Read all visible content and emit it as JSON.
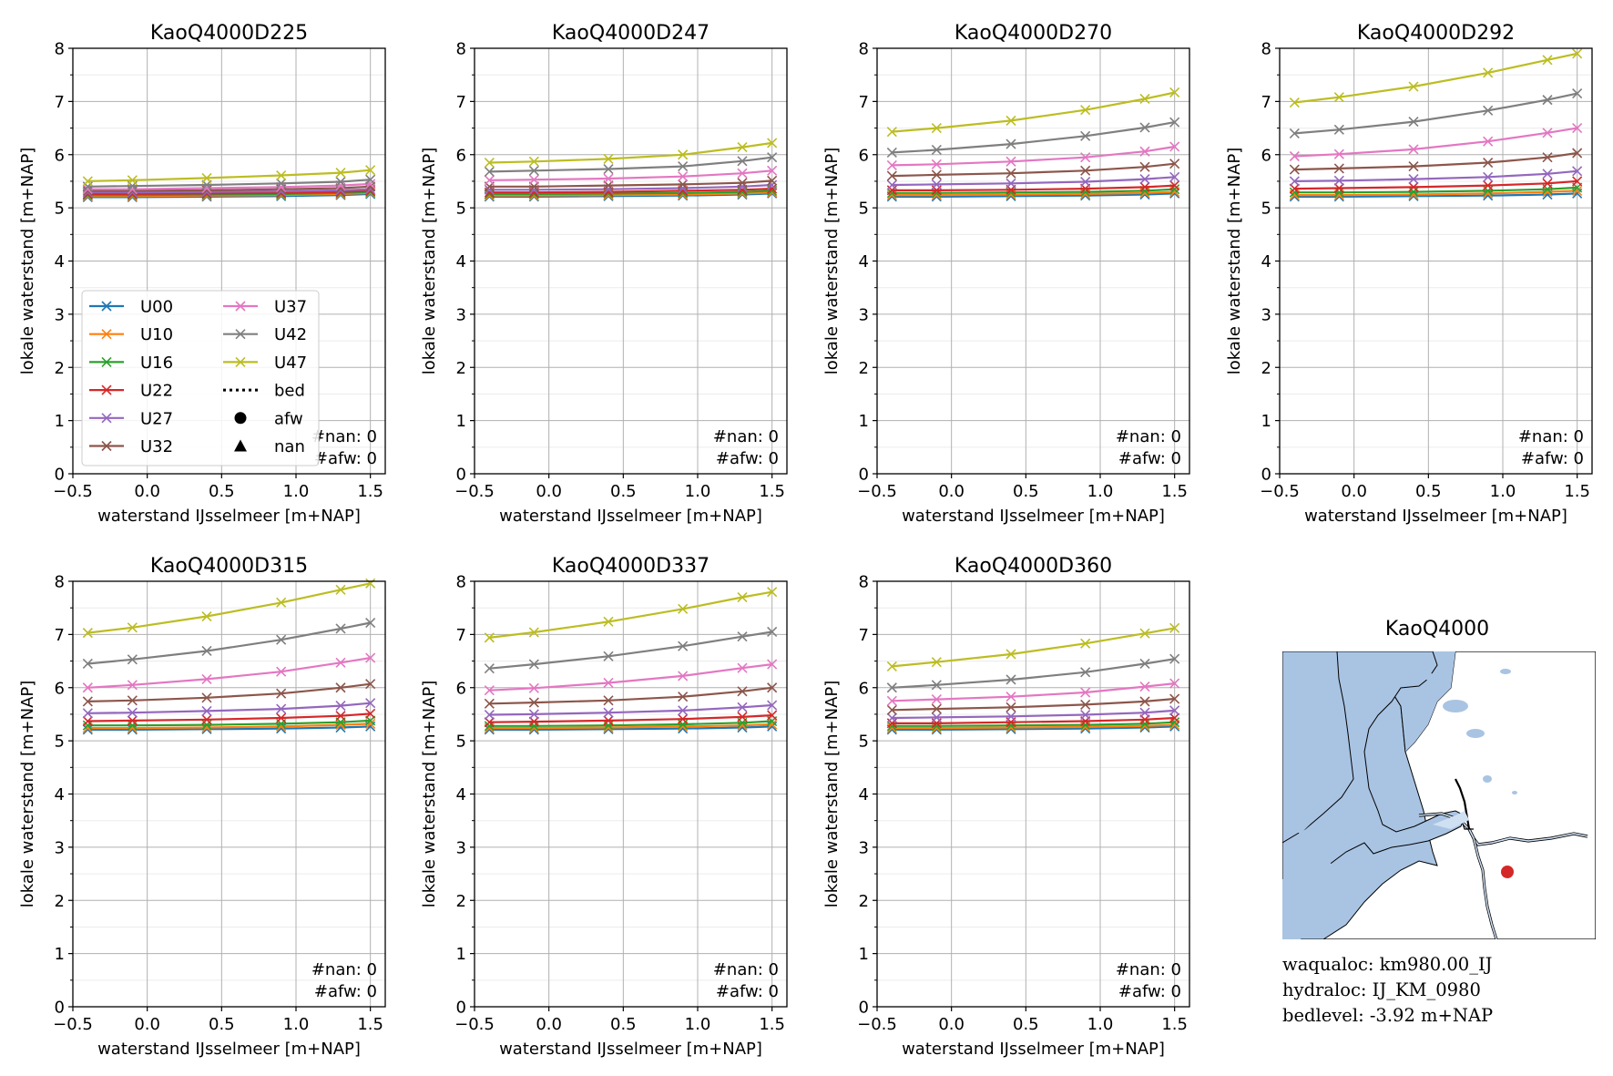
{
  "figure": {
    "colors": {
      "U00": "#1f77b4",
      "U10": "#ff7f0e",
      "U16": "#2ca02c",
      "U22": "#d62728",
      "U27": "#9467bd",
      "U32": "#8c564b",
      "U37": "#e377c2",
      "U42": "#7f7f7f",
      "U47": "#bcbd22"
    },
    "legend": {
      "entries": [
        "U00",
        "U10",
        "U16",
        "U22",
        "U27",
        "U32",
        "U37",
        "U42",
        "U47"
      ],
      "extra": [
        {
          "label": "bed",
          "marker": "dotted-line"
        },
        {
          "label": "afw",
          "marker": "circle"
        },
        {
          "label": "nan",
          "marker": "triangle"
        }
      ]
    },
    "map": {
      "title": "KaoQ4000",
      "land_color": "#a9c4e3",
      "river_color": "#cfe0f3",
      "marker_color": "#d62728"
    },
    "info": {
      "waqualoc": "waqualoc: km980.00_IJ",
      "hydraloc": "hydraloc: IJ_KM_0980",
      "bedlevel": "bedlevel: -3.92 m+NAP"
    }
  },
  "chart_data": [
    {
      "type": "line",
      "title": "KaoQ4000D225",
      "xlabel": "waterstand IJsselmeer [m+NAP]",
      "ylabel": "lokale waterstand [m+NAP]",
      "xlim": [
        -0.5,
        1.6
      ],
      "ylim": [
        0,
        8
      ],
      "xticks": [
        -0.5,
        0.0,
        0.5,
        1.0,
        1.5
      ],
      "yticks": [
        0,
        1,
        2,
        3,
        4,
        5,
        6,
        7,
        8
      ],
      "xticklabels": [
        "−0.5",
        "0.0",
        "0.5",
        "1.0",
        "1.5"
      ],
      "grid": true,
      "legend": "lower-left",
      "annotation": [
        "#nan: 0",
        "#afw: 0"
      ],
      "x": [
        -0.4,
        -0.1,
        0.4,
        0.9,
        1.3,
        1.5
      ],
      "series": [
        {
          "name": "U00",
          "values": [
            5.2,
            5.2,
            5.21,
            5.22,
            5.24,
            5.26
          ]
        },
        {
          "name": "U10",
          "values": [
            5.22,
            5.22,
            5.23,
            5.24,
            5.26,
            5.28
          ]
        },
        {
          "name": "U16",
          "values": [
            5.24,
            5.24,
            5.25,
            5.26,
            5.28,
            5.3
          ]
        },
        {
          "name": "U22",
          "values": [
            5.26,
            5.26,
            5.27,
            5.28,
            5.3,
            5.32
          ]
        },
        {
          "name": "U27",
          "values": [
            5.29,
            5.29,
            5.3,
            5.31,
            5.33,
            5.35
          ]
        },
        {
          "name": "U32",
          "values": [
            5.32,
            5.32,
            5.33,
            5.35,
            5.37,
            5.4
          ]
        },
        {
          "name": "U37",
          "values": [
            5.35,
            5.35,
            5.37,
            5.39,
            5.42,
            5.45
          ]
        },
        {
          "name": "U42",
          "values": [
            5.4,
            5.41,
            5.43,
            5.46,
            5.49,
            5.53
          ]
        },
        {
          "name": "U47",
          "values": [
            5.5,
            5.52,
            5.56,
            5.61,
            5.66,
            5.71
          ]
        }
      ]
    },
    {
      "type": "line",
      "title": "KaoQ4000D247",
      "xlabel": "waterstand IJsselmeer [m+NAP]",
      "ylabel": "lokale waterstand [m+NAP]",
      "xlim": [
        -0.5,
        1.6
      ],
      "ylim": [
        0,
        8
      ],
      "xticks": [
        -0.5,
        0.0,
        0.5,
        1.0,
        1.5
      ],
      "yticks": [
        0,
        1,
        2,
        3,
        4,
        5,
        6,
        7,
        8
      ],
      "xticklabels": [
        "−0.5",
        "0.0",
        "0.5",
        "1.0",
        "1.5"
      ],
      "grid": true,
      "legend": "",
      "annotation": [
        "#nan: 0",
        "#afw: 0"
      ],
      "x": [
        -0.4,
        -0.1,
        0.4,
        0.9,
        1.3,
        1.5
      ],
      "series": [
        {
          "name": "U00",
          "values": [
            5.21,
            5.21,
            5.22,
            5.23,
            5.25,
            5.27
          ]
        },
        {
          "name": "U10",
          "values": [
            5.23,
            5.23,
            5.24,
            5.25,
            5.27,
            5.29
          ]
        },
        {
          "name": "U16",
          "values": [
            5.26,
            5.26,
            5.27,
            5.28,
            5.3,
            5.32
          ]
        },
        {
          "name": "U22",
          "values": [
            5.29,
            5.29,
            5.3,
            5.32,
            5.34,
            5.36
          ]
        },
        {
          "name": "U27",
          "values": [
            5.34,
            5.34,
            5.35,
            5.37,
            5.4,
            5.43
          ]
        },
        {
          "name": "U32",
          "values": [
            5.4,
            5.4,
            5.42,
            5.44,
            5.47,
            5.51
          ]
        },
        {
          "name": "U37",
          "values": [
            5.52,
            5.53,
            5.55,
            5.59,
            5.65,
            5.7
          ]
        },
        {
          "name": "U42",
          "values": [
            5.68,
            5.7,
            5.73,
            5.78,
            5.88,
            5.95
          ]
        },
        {
          "name": "U47",
          "values": [
            5.85,
            5.87,
            5.92,
            6.0,
            6.14,
            6.22
          ]
        }
      ]
    },
    {
      "type": "line",
      "title": "KaoQ4000D270",
      "xlabel": "waterstand IJsselmeer [m+NAP]",
      "ylabel": "lokale waterstand [m+NAP]",
      "xlim": [
        -0.5,
        1.6
      ],
      "ylim": [
        0,
        8
      ],
      "xticks": [
        -0.5,
        0.0,
        0.5,
        1.0,
        1.5
      ],
      "yticks": [
        0,
        1,
        2,
        3,
        4,
        5,
        6,
        7,
        8
      ],
      "xticklabels": [
        "−0.5",
        "0.0",
        "0.5",
        "1.0",
        "1.5"
      ],
      "grid": true,
      "legend": "",
      "annotation": [
        "#nan: 0",
        "#afw: 0"
      ],
      "x": [
        -0.4,
        -0.1,
        0.4,
        0.9,
        1.3,
        1.5
      ],
      "series": [
        {
          "name": "U00",
          "values": [
            5.21,
            5.21,
            5.22,
            5.23,
            5.25,
            5.27
          ]
        },
        {
          "name": "U10",
          "values": [
            5.24,
            5.24,
            5.25,
            5.26,
            5.28,
            5.3
          ]
        },
        {
          "name": "U16",
          "values": [
            5.28,
            5.28,
            5.29,
            5.3,
            5.32,
            5.35
          ]
        },
        {
          "name": "U22",
          "values": [
            5.33,
            5.33,
            5.34,
            5.36,
            5.39,
            5.42
          ]
        },
        {
          "name": "U27",
          "values": [
            5.43,
            5.44,
            5.46,
            5.49,
            5.54,
            5.58
          ]
        },
        {
          "name": "U32",
          "values": [
            5.6,
            5.62,
            5.65,
            5.7,
            5.77,
            5.83
          ]
        },
        {
          "name": "U37",
          "values": [
            5.8,
            5.82,
            5.87,
            5.95,
            6.06,
            6.15
          ]
        },
        {
          "name": "U42",
          "values": [
            6.04,
            6.09,
            6.2,
            6.35,
            6.51,
            6.61
          ]
        },
        {
          "name": "U47",
          "values": [
            6.43,
            6.5,
            6.64,
            6.84,
            7.05,
            7.17
          ]
        }
      ]
    },
    {
      "type": "line",
      "title": "KaoQ4000D292",
      "xlabel": "waterstand IJsselmeer [m+NAP]",
      "ylabel": "lokale waterstand [m+NAP]",
      "xlim": [
        -0.5,
        1.6
      ],
      "ylim": [
        0,
        8
      ],
      "xticks": [
        -0.5,
        0.0,
        0.5,
        1.0,
        1.5
      ],
      "yticks": [
        0,
        1,
        2,
        3,
        4,
        5,
        6,
        7,
        8
      ],
      "xticklabels": [
        "−0.5",
        "0.0",
        "0.5",
        "1.0",
        "1.5"
      ],
      "grid": true,
      "legend": "",
      "annotation": [
        "#nan: 0",
        "#afw: 0"
      ],
      "x": [
        -0.4,
        -0.1,
        0.4,
        0.9,
        1.3,
        1.5
      ],
      "series": [
        {
          "name": "U00",
          "values": [
            5.21,
            5.21,
            5.22,
            5.23,
            5.25,
            5.27
          ]
        },
        {
          "name": "U10",
          "values": [
            5.24,
            5.24,
            5.25,
            5.27,
            5.3,
            5.32
          ]
        },
        {
          "name": "U16",
          "values": [
            5.29,
            5.29,
            5.3,
            5.32,
            5.35,
            5.38
          ]
        },
        {
          "name": "U22",
          "values": [
            5.36,
            5.37,
            5.39,
            5.42,
            5.46,
            5.5
          ]
        },
        {
          "name": "U27",
          "values": [
            5.5,
            5.51,
            5.54,
            5.58,
            5.64,
            5.69
          ]
        },
        {
          "name": "U32",
          "values": [
            5.72,
            5.74,
            5.78,
            5.85,
            5.95,
            6.03
          ]
        },
        {
          "name": "U37",
          "values": [
            5.97,
            6.01,
            6.1,
            6.25,
            6.41,
            6.5
          ]
        },
        {
          "name": "U42",
          "values": [
            6.4,
            6.47,
            6.62,
            6.83,
            7.03,
            7.15
          ]
        },
        {
          "name": "U47",
          "values": [
            6.98,
            7.08,
            7.28,
            7.54,
            7.78,
            7.9
          ]
        }
      ]
    },
    {
      "type": "line",
      "title": "KaoQ4000D315",
      "xlabel": "waterstand IJsselmeer [m+NAP]",
      "ylabel": "lokale waterstand [m+NAP]",
      "xlim": [
        -0.5,
        1.6
      ],
      "ylim": [
        0,
        8
      ],
      "xticks": [
        -0.5,
        0.0,
        0.5,
        1.0,
        1.5
      ],
      "yticks": [
        0,
        1,
        2,
        3,
        4,
        5,
        6,
        7,
        8
      ],
      "xticklabels": [
        "−0.5",
        "0.0",
        "0.5",
        "1.0",
        "1.5"
      ],
      "grid": true,
      "legend": "",
      "annotation": [
        "#nan: 0",
        "#afw: 0"
      ],
      "x": [
        -0.4,
        -0.1,
        0.4,
        0.9,
        1.3,
        1.5
      ],
      "series": [
        {
          "name": "U00",
          "values": [
            5.21,
            5.21,
            5.22,
            5.23,
            5.25,
            5.27
          ]
        },
        {
          "name": "U10",
          "values": [
            5.24,
            5.24,
            5.25,
            5.27,
            5.3,
            5.32
          ]
        },
        {
          "name": "U16",
          "values": [
            5.29,
            5.29,
            5.3,
            5.32,
            5.35,
            5.38
          ]
        },
        {
          "name": "U22",
          "values": [
            5.37,
            5.38,
            5.4,
            5.43,
            5.47,
            5.51
          ]
        },
        {
          "name": "U27",
          "values": [
            5.52,
            5.53,
            5.56,
            5.6,
            5.66,
            5.71
          ]
        },
        {
          "name": "U32",
          "values": [
            5.74,
            5.76,
            5.81,
            5.89,
            6.0,
            6.07
          ]
        },
        {
          "name": "U37",
          "values": [
            6.0,
            6.05,
            6.16,
            6.3,
            6.47,
            6.56
          ]
        },
        {
          "name": "U42",
          "values": [
            6.45,
            6.53,
            6.69,
            6.9,
            7.11,
            7.22
          ]
        },
        {
          "name": "U47",
          "values": [
            7.03,
            7.13,
            7.34,
            7.6,
            7.84,
            7.96
          ]
        }
      ]
    },
    {
      "type": "line",
      "title": "KaoQ4000D337",
      "xlabel": "waterstand IJsselmeer [m+NAP]",
      "ylabel": "lokale waterstand [m+NAP]",
      "xlim": [
        -0.5,
        1.6
      ],
      "ylim": [
        0,
        8
      ],
      "xticks": [
        -0.5,
        0.0,
        0.5,
        1.0,
        1.5
      ],
      "yticks": [
        0,
        1,
        2,
        3,
        4,
        5,
        6,
        7,
        8
      ],
      "xticklabels": [
        "−0.5",
        "0.0",
        "0.5",
        "1.0",
        "1.5"
      ],
      "grid": true,
      "legend": "",
      "annotation": [
        "#nan: 0",
        "#afw: 0"
      ],
      "x": [
        -0.4,
        -0.1,
        0.4,
        0.9,
        1.3,
        1.5
      ],
      "series": [
        {
          "name": "U00",
          "values": [
            5.21,
            5.21,
            5.22,
            5.23,
            5.25,
            5.27
          ]
        },
        {
          "name": "U10",
          "values": [
            5.24,
            5.24,
            5.25,
            5.27,
            5.29,
            5.31
          ]
        },
        {
          "name": "U16",
          "values": [
            5.28,
            5.28,
            5.29,
            5.31,
            5.34,
            5.37
          ]
        },
        {
          "name": "U22",
          "values": [
            5.35,
            5.36,
            5.38,
            5.41,
            5.45,
            5.48
          ]
        },
        {
          "name": "U27",
          "values": [
            5.49,
            5.5,
            5.53,
            5.57,
            5.63,
            5.67
          ]
        },
        {
          "name": "U32",
          "values": [
            5.7,
            5.72,
            5.76,
            5.83,
            5.93,
            6.0
          ]
        },
        {
          "name": "U37",
          "values": [
            5.95,
            5.99,
            6.09,
            6.22,
            6.37,
            6.44
          ]
        },
        {
          "name": "U42",
          "values": [
            6.36,
            6.44,
            6.59,
            6.78,
            6.96,
            7.05
          ]
        },
        {
          "name": "U47",
          "values": [
            6.94,
            7.04,
            7.24,
            7.48,
            7.7,
            7.8
          ]
        }
      ]
    },
    {
      "type": "line",
      "title": "KaoQ4000D360",
      "xlabel": "waterstand IJsselmeer [m+NAP]",
      "ylabel": "lokale waterstand [m+NAP]",
      "xlim": [
        -0.5,
        1.6
      ],
      "ylim": [
        0,
        8
      ],
      "xticks": [
        -0.5,
        0.0,
        0.5,
        1.0,
        1.5
      ],
      "yticks": [
        0,
        1,
        2,
        3,
        4,
        5,
        6,
        7,
        8
      ],
      "xticklabels": [
        "−0.5",
        "0.0",
        "0.5",
        "1.0",
        "1.5"
      ],
      "grid": true,
      "legend": "",
      "annotation": [
        "#nan: 0",
        "#afw: 0"
      ],
      "x": [
        -0.4,
        -0.1,
        0.4,
        0.9,
        1.3,
        1.5
      ],
      "series": [
        {
          "name": "U00",
          "values": [
            5.21,
            5.21,
            5.22,
            5.23,
            5.25,
            5.27
          ]
        },
        {
          "name": "U10",
          "values": [
            5.24,
            5.24,
            5.25,
            5.26,
            5.28,
            5.3
          ]
        },
        {
          "name": "U16",
          "values": [
            5.28,
            5.28,
            5.29,
            5.3,
            5.32,
            5.35
          ]
        },
        {
          "name": "U22",
          "values": [
            5.33,
            5.33,
            5.35,
            5.37,
            5.4,
            5.43
          ]
        },
        {
          "name": "U27",
          "values": [
            5.43,
            5.44,
            5.46,
            5.49,
            5.53,
            5.57
          ]
        },
        {
          "name": "U32",
          "values": [
            5.58,
            5.6,
            5.63,
            5.68,
            5.74,
            5.79
          ]
        },
        {
          "name": "U37",
          "values": [
            5.75,
            5.78,
            5.83,
            5.91,
            6.02,
            6.08
          ]
        },
        {
          "name": "U42",
          "values": [
            6.0,
            6.05,
            6.15,
            6.29,
            6.45,
            6.54
          ]
        },
        {
          "name": "U47",
          "values": [
            6.4,
            6.48,
            6.63,
            6.83,
            7.02,
            7.12
          ]
        }
      ]
    }
  ]
}
